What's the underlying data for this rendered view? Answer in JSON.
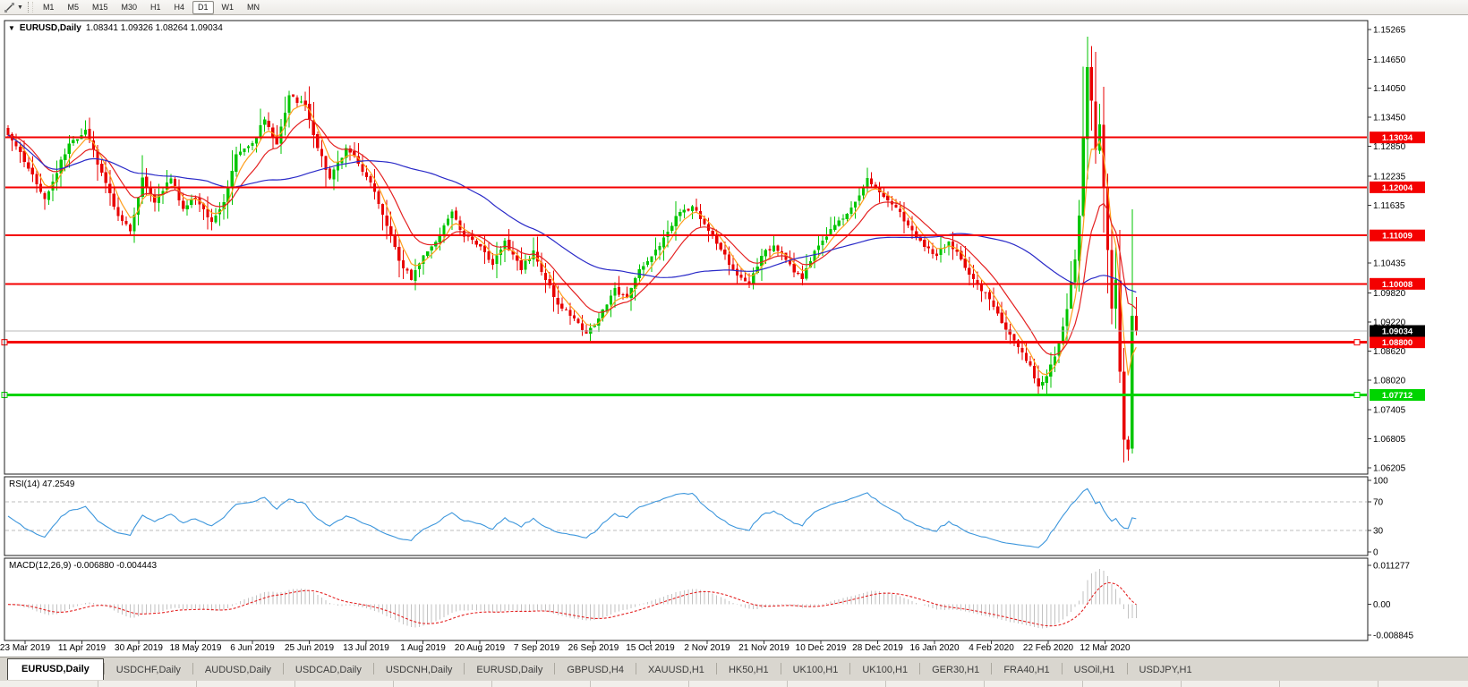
{
  "toolbar": {
    "timeframes": [
      {
        "label": "M1",
        "active": false
      },
      {
        "label": "M5",
        "active": false
      },
      {
        "label": "M15",
        "active": false
      },
      {
        "label": "M30",
        "active": false
      },
      {
        "label": "H1",
        "active": false
      },
      {
        "label": "H4",
        "active": false
      },
      {
        "label": "D1",
        "active": true
      },
      {
        "label": "W1",
        "active": false
      },
      {
        "label": "MN",
        "active": false
      }
    ]
  },
  "main_chart": {
    "title_symbol": "EURUSD,Daily",
    "title_values": "1.08341 1.09326 1.08264 1.09034",
    "dropdown_glyph": "▼"
  },
  "rsi_panel": {
    "label": "RSI(14) 47.2549"
  },
  "macd_panel": {
    "label": "MACD(12,26,9) -0.006880 -0.004443"
  },
  "chart_data": {
    "type": "candlestick",
    "symbol": "EURUSD",
    "period": "Daily",
    "last_bar": {
      "open": 1.08341,
      "high": 1.09326,
      "low": 1.08264,
      "close": 1.09034
    },
    "price_range": {
      "top": 1.15265,
      "bottom": 1.06205
    },
    "y_axis_ticks": [
      1.15265,
      1.1465,
      1.1405,
      1.1345,
      1.1285,
      1.12235,
      1.11635,
      1.10435,
      1.0982,
      1.0922,
      1.0862,
      1.0802,
      1.07405,
      1.06805,
      1.06205
    ],
    "x_axis_labels": [
      "23 Mar 2019",
      "11 Apr 2019",
      "30 Apr 2019",
      "18 May 2019",
      "6 Jun 2019",
      "25 Jun 2019",
      "13 Jul 2019",
      "1 Aug 2019",
      "20 Aug 2019",
      "7 Sep 2019",
      "26 Sep 2019",
      "15 Oct 2019",
      "2 Nov 2019",
      "21 Nov 2019",
      "10 Dec 2019",
      "28 Dec 2019",
      "16 Jan 2020",
      "4 Feb 2020",
      "22 Feb 2020",
      "12 Mar 2020"
    ],
    "horizontal_lines": [
      {
        "price": 1.13034,
        "color": "#f40000",
        "thickness": 2,
        "selected": false
      },
      {
        "price": 1.12004,
        "color": "#f40000",
        "thickness": 2,
        "selected": false
      },
      {
        "price": 1.11009,
        "color": "#f40000",
        "thickness": 2,
        "selected": false
      },
      {
        "price": 1.10008,
        "color": "#f40000",
        "thickness": 2,
        "selected": false
      },
      {
        "price": 1.088,
        "color": "#f40000",
        "thickness": 3,
        "selected": true
      },
      {
        "price": 1.07712,
        "color": "#00d400",
        "thickness": 3,
        "selected": true
      }
    ],
    "current_price": {
      "value": 1.09034,
      "line_color": "#b8b8b8",
      "badge_bg": "#000000"
    },
    "candle_colors": {
      "bull": "#00c500",
      "bear": "#e80000"
    },
    "moving_averages": [
      {
        "name": "fast-ma",
        "type": "EMA",
        "period": 5,
        "color": "#ff9f1c"
      },
      {
        "name": "medium-ma",
        "type": "EMA",
        "period": 13,
        "color": "#e42222"
      },
      {
        "name": "slow-ma",
        "type": "SMA",
        "period": 50,
        "color": "#2a2ac8"
      }
    ],
    "bars_total": 278,
    "spike_high": {
      "bar": 265,
      "price": 1.1495
    },
    "crash_low": {
      "bar": 274,
      "price": 1.0636
    },
    "close_path_anchors": [
      [
        0,
        1.131
      ],
      [
        5,
        1.124
      ],
      [
        9,
        1.1175
      ],
      [
        15,
        1.129
      ],
      [
        19,
        1.132
      ],
      [
        23,
        1.123
      ],
      [
        27,
        1.114
      ],
      [
        30,
        1.111
      ],
      [
        33,
        1.122
      ],
      [
        36,
        1.117
      ],
      [
        40,
        1.122
      ],
      [
        43,
        1.1155
      ],
      [
        46,
        1.118
      ],
      [
        50,
        1.113
      ],
      [
        53,
        1.117
      ],
      [
        56,
        1.127
      ],
      [
        60,
        1.129
      ],
      [
        63,
        1.134
      ],
      [
        66,
        1.129
      ],
      [
        69,
        1.139
      ],
      [
        73,
        1.137
      ],
      [
        76,
        1.128
      ],
      [
        79,
        1.122
      ],
      [
        83,
        1.128
      ],
      [
        86,
        1.125
      ],
      [
        89,
        1.121
      ],
      [
        93,
        1.112
      ],
      [
        96,
        1.105
      ],
      [
        99,
        1.101
      ],
      [
        102,
        1.106
      ],
      [
        106,
        1.11
      ],
      [
        109,
        1.115
      ],
      [
        112,
        1.11
      ],
      [
        116,
        1.108
      ],
      [
        119,
        1.104
      ],
      [
        122,
        1.109
      ],
      [
        126,
        1.103
      ],
      [
        129,
        1.107
      ],
      [
        132,
        1.101
      ],
      [
        135,
        1.096
      ],
      [
        139,
        1.093
      ],
      [
        142,
        1.09
      ],
      [
        145,
        1.093
      ],
      [
        149,
        1.099
      ],
      [
        152,
        1.097
      ],
      [
        155,
        1.103
      ],
      [
        159,
        1.107
      ],
      [
        162,
        1.111
      ],
      [
        165,
        1.115
      ],
      [
        168,
        1.116
      ],
      [
        172,
        1.111
      ],
      [
        175,
        1.107
      ],
      [
        178,
        1.103
      ],
      [
        182,
        1.1
      ],
      [
        185,
        1.106
      ],
      [
        188,
        1.108
      ],
      [
        191,
        1.105
      ],
      [
        195,
        1.101
      ],
      [
        198,
        1.107
      ],
      [
        201,
        1.11
      ],
      [
        204,
        1.113
      ],
      [
        208,
        1.117
      ],
      [
        211,
        1.122
      ],
      [
        214,
        1.119
      ],
      [
        218,
        1.116
      ],
      [
        221,
        1.112
      ],
      [
        224,
        1.109
      ],
      [
        228,
        1.106
      ],
      [
        231,
        1.109
      ],
      [
        234,
        1.105
      ],
      [
        238,
        1.1
      ],
      [
        241,
        1.097
      ],
      [
        244,
        1.092
      ],
      [
        248,
        1.087
      ],
      [
        251,
        1.083
      ],
      [
        253,
        1.079
      ],
      [
        255,
        1.081
      ],
      [
        257,
        1.085
      ],
      [
        260,
        1.095
      ],
      [
        262,
        1.105
      ],
      [
        263,
        1.114
      ],
      [
        264,
        1.13
      ],
      [
        265,
        1.145
      ],
      [
        266,
        1.138
      ],
      [
        267,
        1.128
      ],
      [
        268,
        1.133
      ],
      [
        269,
        1.12
      ],
      [
        270,
        1.107
      ],
      [
        271,
        1.095
      ],
      [
        272,
        1.101
      ],
      [
        273,
        1.082
      ],
      [
        274,
        1.068
      ],
      [
        275,
        1.066
      ],
      [
        276,
        1.0935
      ],
      [
        277,
        1.0903
      ]
    ],
    "rsi": {
      "period": 14,
      "value": 47.2549,
      "axis_levels": [
        100,
        70,
        30,
        0
      ],
      "guide_levels": [
        70,
        30
      ],
      "color": "#3c96dc",
      "guide_color": "#bcbcbc"
    },
    "macd": {
      "fast": 12,
      "slow": 26,
      "signal_period": 9,
      "value": -0.00688,
      "signal_value": -0.004443,
      "axis_labels": [
        {
          "text": "0.011277",
          "v": 0.011277
        },
        {
          "text": "0.00",
          "v": 0
        },
        {
          "text": "-0.008845",
          "v": -0.008845
        }
      ],
      "histogram_color": "#c2c2c2",
      "signal_color": "#e42222"
    }
  },
  "tabs": [
    {
      "label": "EURUSD,Daily",
      "active": true
    },
    {
      "label": "USDCHF,Daily",
      "active": false
    },
    {
      "label": "AUDUSD,Daily",
      "active": false
    },
    {
      "label": "USDCAD,Daily",
      "active": false
    },
    {
      "label": "USDCNH,Daily",
      "active": false
    },
    {
      "label": "EURUSD,Daily",
      "active": false
    },
    {
      "label": "GBPUSD,H4",
      "active": false
    },
    {
      "label": "XAUUSD,H1",
      "active": false
    },
    {
      "label": "HK50,H1",
      "active": false
    },
    {
      "label": "UK100,H1",
      "active": false
    },
    {
      "label": "UK100,H1",
      "active": false
    },
    {
      "label": "GER30,H1",
      "active": false
    },
    {
      "label": "FRA40,H1",
      "active": false
    },
    {
      "label": "USOil,H1",
      "active": false
    },
    {
      "label": "USDJPY,H1",
      "active": false
    }
  ]
}
